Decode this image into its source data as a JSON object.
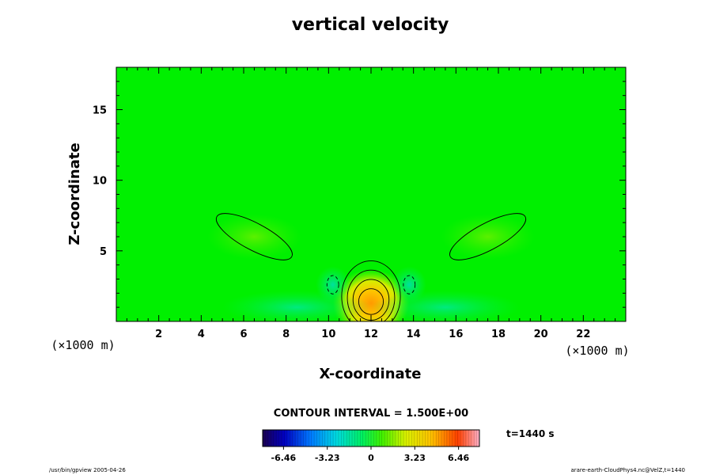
{
  "chart_data": {
    "type": "heatmap",
    "title": "vertical velocity",
    "xlabel": "X-coordinate",
    "ylabel": "Z-coordinate",
    "x_unit": "(×1000 m)",
    "y_unit": "(×1000 m)",
    "xlim": [
      0,
      24
    ],
    "ylim": [
      0,
      18
    ],
    "x_ticks": [
      "2",
      "4",
      "6",
      "8",
      "10",
      "12",
      "14",
      "16",
      "18",
      "20",
      "22"
    ],
    "x_tick_values": [
      2,
      4,
      6,
      8,
      10,
      12,
      14,
      16,
      18,
      20,
      22
    ],
    "y_ticks": [
      "5",
      "10",
      "15"
    ],
    "y_tick_values": [
      5,
      10,
      15
    ],
    "grid": false,
    "contour_interval_text": "CONTOUR INTERVAL = 1.500E+00",
    "contour_interval": 1.5,
    "time_label": "t=1440 s",
    "colorbar": {
      "min": -8.0,
      "max": 8.0,
      "tick_labels": [
        "-6.46",
        "-3.23",
        "0",
        "3.23",
        "6.46"
      ],
      "tick_values": [
        -6.46,
        -3.23,
        0,
        3.23,
        6.46
      ]
    },
    "field_features": [
      {
        "name": "updraft core",
        "x": 12.0,
        "z": 1.3,
        "w": 6.2
      },
      {
        "name": "weak updraft left",
        "x": 6.5,
        "z": 6.0,
        "w": 1.6
      },
      {
        "name": "weak updraft right",
        "x": 17.5,
        "z": 6.0,
        "w": 1.6
      },
      {
        "name": "downdraft left",
        "x": 10.2,
        "z": 2.6,
        "w": -2.3
      },
      {
        "name": "downdraft right",
        "x": 13.8,
        "z": 2.6,
        "w": -2.3
      },
      {
        "name": "low-level downdraft band left",
        "x": 8.5,
        "z": 1.0,
        "w": -1.0
      },
      {
        "name": "low-level downdraft band right",
        "x": 15.5,
        "z": 1.0,
        "w": -1.0
      }
    ]
  },
  "footer": {
    "left": "/usr/bin/gpview 2005-04-26",
    "right": "arare-earth-CloudPhys4.nc@VelZ,t=1440"
  }
}
